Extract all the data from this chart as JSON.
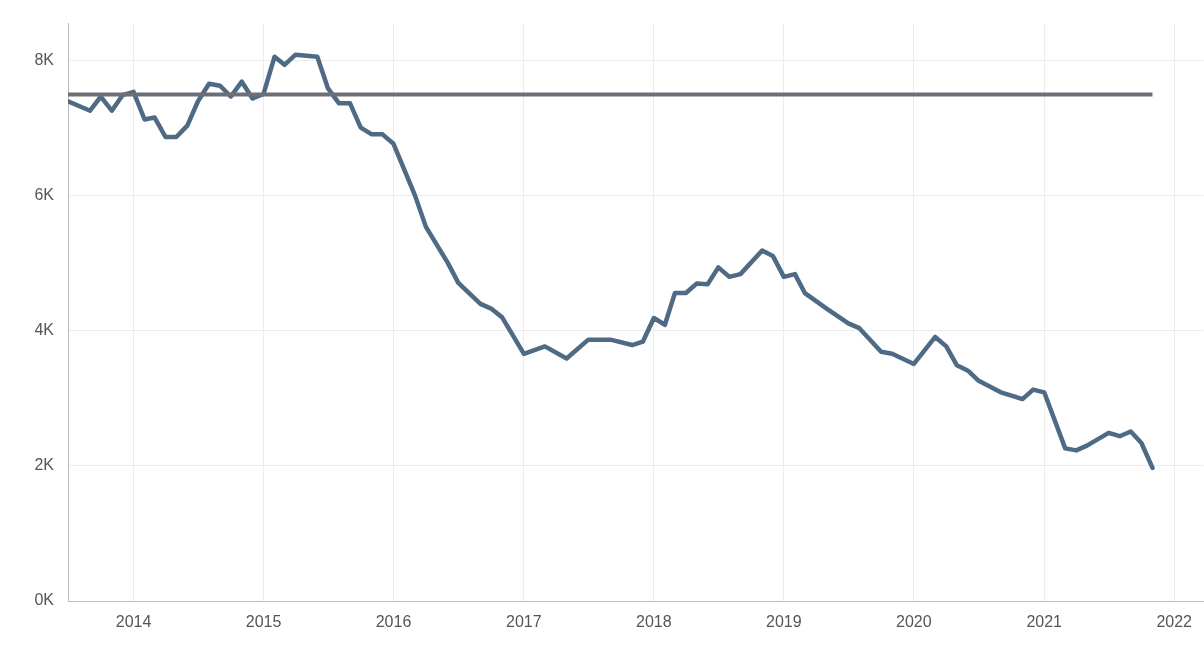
{
  "chart_data": {
    "type": "line",
    "xlim": [
      "2013-07",
      "2022-03-25"
    ],
    "xticks": [
      "2014",
      "2015",
      "2016",
      "2017",
      "2018",
      "2019",
      "2020",
      "2021",
      "2022"
    ],
    "ylim": [
      0,
      8550
    ],
    "yticks": [
      {
        "value": 0,
        "label": "0K"
      },
      {
        "value": 2000,
        "label": "2K"
      },
      {
        "value": 4000,
        "label": "4K"
      },
      {
        "value": 6000,
        "label": "6K"
      },
      {
        "value": 8000,
        "label": "8K"
      }
    ],
    "grid": true,
    "marker": "none",
    "line_style": "solid",
    "x": [
      "2013-07",
      "2013-09",
      "2013-10",
      "2013-11",
      "2013-12",
      "2014-01",
      "2014-02",
      "2014-03",
      "2014-04",
      "2014-05",
      "2014-06",
      "2014-07",
      "2014-08",
      "2014-09",
      "2014-10",
      "2014-11",
      "2014-12",
      "2015-01",
      "2015-02",
      "2015-03",
      "2015-04",
      "2015-06",
      "2015-07",
      "2015-08",
      "2015-09",
      "2015-10",
      "2015-11",
      "2015-12",
      "2016-01",
      "2016-03",
      "2016-04",
      "2016-06",
      "2016-07",
      "2016-09",
      "2016-10",
      "2016-11",
      "2017-01",
      "2017-03",
      "2017-05",
      "2017-07",
      "2017-09",
      "2017-11",
      "2017-12",
      "2018-01",
      "2018-02",
      "2018-03",
      "2018-04",
      "2018-05",
      "2018-06",
      "2018-07",
      "2018-08",
      "2018-09",
      "2018-11",
      "2018-12",
      "2019-01",
      "2019-02",
      "2019-03",
      "2019-05",
      "2019-07",
      "2019-08",
      "2019-10",
      "2019-11",
      "2020-01",
      "2020-03",
      "2020-04",
      "2020-05",
      "2020-06",
      "2020-07",
      "2020-09",
      "2020-11",
      "2020-12",
      "2021-01",
      "2021-03",
      "2021-04",
      "2021-05",
      "2021-07",
      "2021-08",
      "2021-09",
      "2021-10",
      "2021-11"
    ],
    "series": [
      {
        "color": "#4e6a85",
        "values": [
          7400,
          7260,
          7470,
          7260,
          7490,
          7540,
          7130,
          7160,
          6870,
          6870,
          7040,
          7400,
          7660,
          7630,
          7470,
          7690,
          7440,
          7510,
          8060,
          7940,
          8090,
          8060,
          7590,
          7370,
          7370,
          7010,
          6910,
          6910,
          6770,
          6010,
          5540,
          5010,
          4710,
          4400,
          4330,
          4200,
          3660,
          3770,
          3590,
          3870,
          3870,
          3790,
          3840,
          4190,
          4090,
          4560,
          4560,
          4700,
          4690,
          4940,
          4800,
          4840,
          5190,
          5110,
          4800,
          4840,
          4560,
          4330,
          4110,
          4040,
          3690,
          3660,
          3510,
          3910,
          3770,
          3490,
          3410,
          3260,
          3090,
          2990,
          3130,
          3090,
          2260,
          2230,
          2300,
          2490,
          2440,
          2510,
          2340,
          1970
        ]
      }
    ],
    "ref_lines": [
      {
        "axis": "y",
        "value": 7500,
        "color": "#6e6e78"
      }
    ]
  }
}
